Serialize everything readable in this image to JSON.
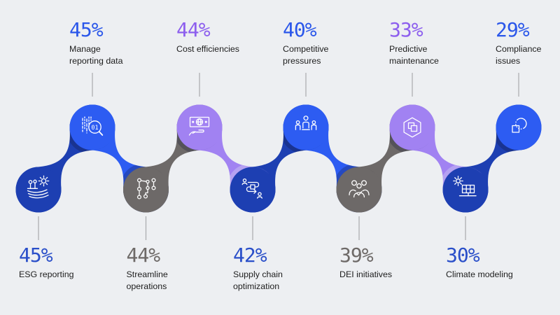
{
  "background": "#edeff2",
  "palette": {
    "navy": {
      "circle": "#1d3fb2",
      "text": "#2a4fc9"
    },
    "blue": {
      "circle": "#2d5cf2",
      "text": "#2b57ea"
    },
    "gray": {
      "circle": "#6d6968",
      "text": "#6e6a68"
    },
    "purple": {
      "circle": "#a182f2",
      "text": "#8d5fee"
    }
  },
  "shadow_colors": {
    "dark": "rgba(15,18,46,0.26)",
    "lavender": "#b5a1f2"
  },
  "tick_color": "#a8a9ad",
  "nodes": [
    {
      "id": "esg-reporting",
      "row": "bottom",
      "color": "navy",
      "percent": "45%",
      "label_lines": [
        "ESG reporting"
      ],
      "icon": "agriculture-icon"
    },
    {
      "id": "manage-reporting-data",
      "row": "top",
      "color": "blue",
      "percent": "45%",
      "label_lines": [
        "Manage",
        "reporting data"
      ],
      "icon": "data-search-icon"
    },
    {
      "id": "streamline-operations",
      "row": "bottom",
      "color": "gray",
      "percent": "44%",
      "label_lines": [
        "Streamline",
        "operations"
      ],
      "icon": "workflow-nodes-icon"
    },
    {
      "id": "cost-efficiencies",
      "row": "top",
      "color": "purple",
      "percent": "44%",
      "label_lines": [
        "Cost efficiencies"
      ],
      "icon": "money-in-hand-icon"
    },
    {
      "id": "supply-chain-optimization",
      "row": "bottom",
      "color": "navy",
      "percent": "42%",
      "label_lines": [
        "Supply chain",
        "optimization"
      ],
      "icon": "process-loop-icon"
    },
    {
      "id": "competitive-pressures",
      "row": "top",
      "color": "blue",
      "percent": "40%",
      "label_lines": [
        "Competitive",
        "pressures"
      ],
      "icon": "people-podium-icon"
    },
    {
      "id": "dei-initiatives",
      "row": "bottom",
      "color": "gray",
      "percent": "39%",
      "label_lines": [
        "DEI initiatives"
      ],
      "icon": "group-check-icon"
    },
    {
      "id": "predictive-maintenance",
      "row": "top",
      "color": "purple",
      "percent": "33%",
      "label_lines": [
        "Predictive",
        "maintenance"
      ],
      "icon": "hexagon-layers-icon"
    },
    {
      "id": "climate-modeling",
      "row": "bottom",
      "color": "navy",
      "percent": "30%",
      "label_lines": [
        "Climate modeling"
      ],
      "icon": "solar-panel-icon"
    },
    {
      "id": "compliance-issues",
      "row": "top",
      "color": "blue",
      "percent": "29%",
      "label_lines": [
        "Compliance",
        "issues"
      ],
      "icon": "shapes-overlap-icon"
    }
  ],
  "chart_data": {
    "type": "bar",
    "variant": "zigzag-icon-infographic",
    "categories": [
      "ESG reporting",
      "Manage reporting data",
      "Streamline operations",
      "Cost efficiencies",
      "Supply chain optimization",
      "Competitive pressures",
      "DEI initiatives",
      "Predictive maintenance",
      "Climate modeling",
      "Compliance issues"
    ],
    "values": [
      45,
      45,
      44,
      44,
      42,
      40,
      39,
      33,
      30,
      29
    ],
    "unit": "%",
    "title": "",
    "xlabel": "",
    "ylabel": "",
    "ylim": [
      0,
      100
    ],
    "grid": false,
    "legend": false
  }
}
